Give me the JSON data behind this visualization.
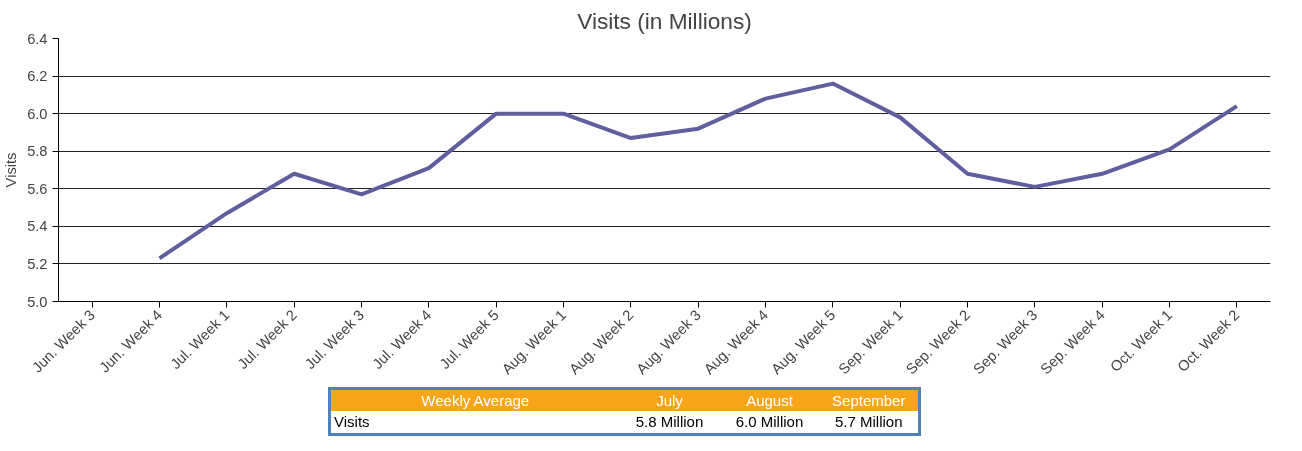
{
  "chart_data": {
    "type": "line",
    "title": "Visits (in Millions)",
    "ylabel": "Visits",
    "categories": [
      "Jun. Week 3",
      "Jun. Week 4",
      "Jul. Week 1",
      "Jul. Week 2",
      "Jul. Week 3",
      "Jul. Week 4",
      "Jul. Week 5",
      "Aug. Week 1",
      "Aug. Week 2",
      "Aug. Week 3",
      "Aug. Week 4",
      "Aug. Week 5",
      "Sep. Week 1",
      "Sep. Week 2",
      "Sep. Week 3",
      "Sep. Week 4",
      "Oct. Week 1",
      "Oct. Week 2"
    ],
    "series": [
      {
        "color": "#5f5fa0",
        "values": [
          null,
          5.23,
          5.47,
          5.68,
          5.57,
          5.71,
          6.0,
          6.0,
          5.87,
          5.92,
          6.08,
          6.16,
          5.98,
          5.68,
          5.61,
          5.68,
          5.81,
          6.04
        ]
      }
    ],
    "ylim": [
      5.0,
      6.4
    ],
    "yticks": [
      {
        "value": 5.0,
        "label": "5.0"
      },
      {
        "value": 5.2,
        "label": "5.2"
      },
      {
        "value": 5.4,
        "label": "5.4"
      },
      {
        "value": 5.6,
        "label": "5.6"
      },
      {
        "value": 5.8,
        "label": "5.8"
      },
      {
        "value": 6.0,
        "label": "6.0"
      },
      {
        "value": 6.2,
        "label": "6.2"
      },
      {
        "value": 6.4,
        "label": "6.4"
      }
    ],
    "grid": "y",
    "marker": "none",
    "line_style": "solid",
    "annotations": [
      "Weekly Average",
      "July",
      "August",
      "September",
      "Visits",
      "5.8 Million",
      "6.0 Million",
      "5.7 Million"
    ]
  }
}
